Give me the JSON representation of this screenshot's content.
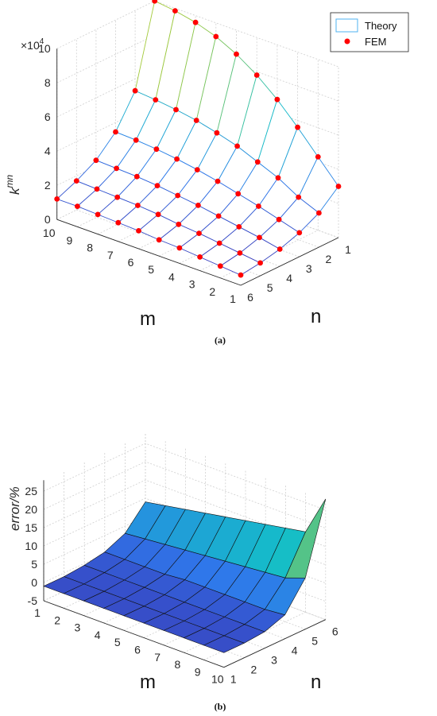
{
  "chart_data": [
    {
      "type": "surface3d",
      "panel_label": "(a)",
      "xlabel": "m",
      "ylabel": "n",
      "zlabel_base": "k",
      "zlabel_sup": "mn",
      "z_scale_label": "×10",
      "z_scale_exp": "4",
      "m_ticks": [
        "1",
        "2",
        "3",
        "4",
        "5",
        "6",
        "7",
        "8",
        "9",
        "10"
      ],
      "n_ticks": [
        "1",
        "2",
        "3",
        "4",
        "5",
        "6"
      ],
      "z_ticks": [
        "0",
        "2",
        "4",
        "6",
        "8",
        "10"
      ],
      "zlim": [
        0,
        10
      ],
      "legend": [
        {
          "label": "Theory",
          "style": "surface"
        },
        {
          "label": "FEM",
          "style": "marker"
        }
      ],
      "m": [
        1,
        2,
        3,
        4,
        5,
        6,
        7,
        8,
        9,
        10
      ],
      "n": [
        1,
        2,
        3,
        4,
        5,
        6
      ],
      "units_note": "k values in units of 1e4",
      "z": [
        [
          3.0,
          2.0,
          1.4,
          1.0,
          0.75,
          0.6
        ],
        [
          4.3,
          2.5,
          1.75,
          1.25,
          0.9,
          0.7
        ],
        [
          5.6,
          3.2,
          2.1,
          1.45,
          1.05,
          0.8
        ],
        [
          6.8,
          3.7,
          2.4,
          1.65,
          1.2,
          0.9
        ],
        [
          7.8,
          4.2,
          2.7,
          1.85,
          1.3,
          0.95
        ],
        [
          8.6,
          4.55,
          2.95,
          2.0,
          1.45,
          1.05
        ],
        [
          9.2,
          4.85,
          3.15,
          2.15,
          1.55,
          1.1
        ],
        [
          9.6,
          5.05,
          3.3,
          2.25,
          1.6,
          1.15
        ],
        [
          9.85,
          5.2,
          3.4,
          2.3,
          1.65,
          1.2
        ],
        [
          10.0,
          5.3,
          3.45,
          2.35,
          1.7,
          1.2
        ]
      ]
    },
    {
      "type": "surface3d",
      "panel_label": "(b)",
      "xlabel": "m",
      "ylabel": "n",
      "zlabel": "error/%",
      "m_ticks": [
        "1",
        "2",
        "3",
        "4",
        "5",
        "6",
        "7",
        "8",
        "9",
        "10"
      ],
      "n_ticks": [
        "1",
        "2",
        "3",
        "4",
        "5",
        "6"
      ],
      "z_ticks": [
        "-5",
        "0",
        "5",
        "10",
        "15",
        "20",
        "25"
      ],
      "zlim": [
        -5,
        28
      ],
      "m": [
        1,
        2,
        3,
        4,
        5,
        6,
        7,
        8,
        9,
        10
      ],
      "n": [
        1,
        2,
        3,
        4,
        5,
        6
      ],
      "z": [
        [
          -1,
          -1,
          -0.5,
          0.5,
          3,
          9
        ],
        [
          -1,
          -1,
          -0.5,
          0.5,
          3.5,
          10
        ],
        [
          -1,
          -1,
          -0.5,
          0.5,
          4,
          11
        ],
        [
          -1,
          -1,
          -0.5,
          0.5,
          4.5,
          12
        ],
        [
          -1,
          -1,
          -0.5,
          1,
          5,
          13
        ],
        [
          -1,
          -1,
          -0.5,
          1,
          5.5,
          14
        ],
        [
          -1,
          -1,
          -0.5,
          1,
          6,
          15
        ],
        [
          -1,
          -1,
          -0.5,
          1,
          6.5,
          16
        ],
        [
          -1,
          -1,
          -0.5,
          1,
          7,
          17
        ],
        [
          -1,
          -1,
          -0.5,
          1.5,
          9,
          28
        ]
      ]
    }
  ]
}
